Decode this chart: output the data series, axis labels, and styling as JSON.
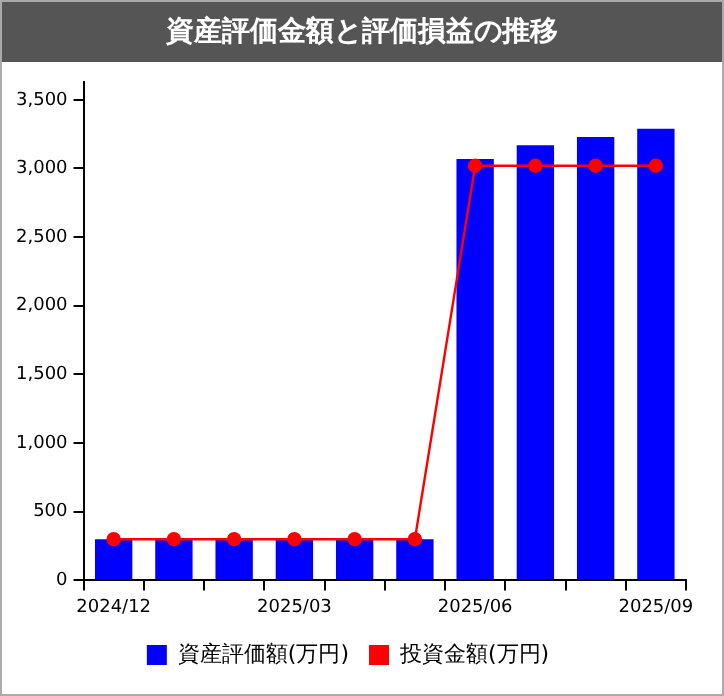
{
  "chart_data": {
    "type": "bar",
    "title": "資産評価金額と評価損益の推移",
    "categories": [
      "2024/12",
      null,
      null,
      "2025/03",
      null,
      null,
      "2025/06",
      null,
      null,
      "2025/09"
    ],
    "series": [
      {
        "name": "資産評価額(万円)",
        "color": "#0000ff",
        "values": [
          300,
          300,
          300,
          300,
          300,
          300,
          3070,
          3170,
          3230,
          3290
        ]
      },
      {
        "name": "投資金額(万円)",
        "type": "line",
        "color": "#ff0000",
        "values": [
          300,
          300,
          300,
          300,
          300,
          300,
          3020,
          3020,
          3020,
          3020
        ]
      }
    ],
    "ylim": [
      0,
      3630
    ],
    "yticks": [
      0,
      500,
      {
        "value": 1000,
        "label": "1,000"
      },
      {
        "value": 1500,
        "label": "1,500"
      },
      {
        "value": 2000,
        "label": "2,000"
      },
      {
        "value": 2500,
        "label": "2,500"
      },
      {
        "value": 3000,
        "label": "3,000"
      },
      {
        "value": 3500,
        "label": "3,500"
      }
    ],
    "grid": false,
    "legend": "bottom",
    "marker": "circle",
    "line_style": "solid"
  }
}
